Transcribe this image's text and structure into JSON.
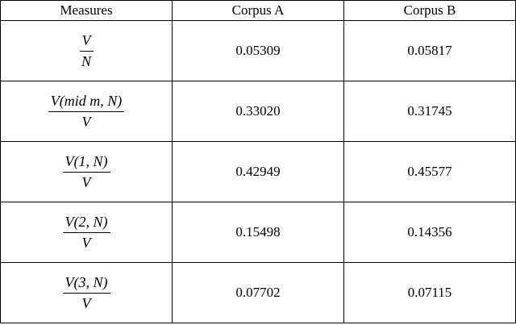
{
  "table": {
    "header": [
      "Measures",
      "Corpus A",
      "Corpus B"
    ],
    "rows": [
      [
        {
          "numerator": "V",
          "denominator": "N"
        },
        "0.05309",
        "0.05817"
      ],
      [
        {
          "numerator": "V(mid m, N)",
          "denominator": "V"
        },
        "0.33020",
        "0.31745"
      ],
      [
        {
          "numerator": "V(1, N)",
          "denominator": "V"
        },
        "0.42949",
        "0.45577"
      ],
      [
        {
          "numerator": "V(2, N)",
          "denominator": "V"
        },
        "0.15498",
        "0.14356"
      ],
      [
        {
          "numerator": "V(3, N)",
          "denominator": "V"
        },
        "0.07702",
        "0.07115"
      ]
    ]
  }
}
